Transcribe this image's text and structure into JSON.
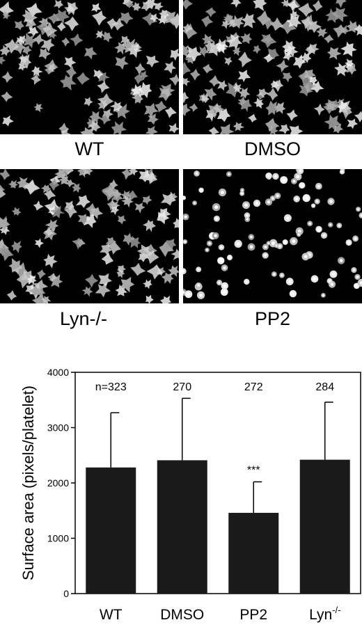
{
  "panels": [
    {
      "label": "WT"
    },
    {
      "label": "DMSO"
    },
    {
      "label": "Lyn-/-"
    },
    {
      "label": "PP2"
    }
  ],
  "chart_data": {
    "type": "bar",
    "categories": [
      "WT",
      "DMSO",
      "PP2",
      "Lyn"
    ],
    "category_superscripts": [
      "",
      "",
      "",
      "-/-"
    ],
    "values": [
      2280,
      2410,
      1460,
      2420
    ],
    "errors": [
      990,
      1120,
      560,
      1040
    ],
    "n_labels": [
      "n=323",
      "270",
      "272",
      "284"
    ],
    "significance": [
      "",
      "",
      "***",
      ""
    ],
    "title": "",
    "xlabel": "",
    "ylabel": "Surface area (pixels/platelet)",
    "ylim": [
      0,
      4000
    ],
    "yticks": [
      0,
      1000,
      2000,
      3000,
      4000
    ],
    "bar_color": "#1a1a1a",
    "grid": false
  }
}
